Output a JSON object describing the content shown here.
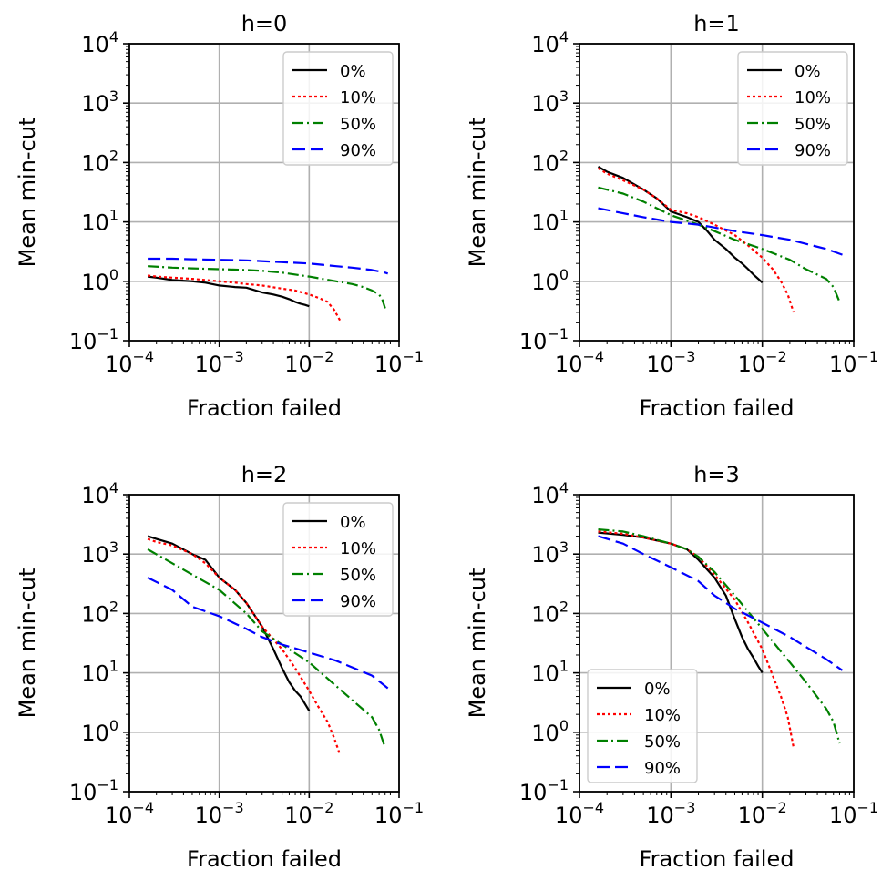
{
  "chart_data": [
    {
      "type": "line",
      "title": "h=0",
      "xlabel": "Fraction failed",
      "ylabel": "Mean min-cut",
      "xscale": "log",
      "yscale": "log",
      "xlim": [
        0.0001,
        0.1
      ],
      "ylim": [
        0.1,
        10000
      ],
      "grid": true,
      "legend_loc": "upper right",
      "series": [
        {
          "name": "0%",
          "color": "#000000",
          "style": "solid",
          "x": [
            0.00016,
            0.0002,
            0.0003,
            0.0005,
            0.0007,
            0.001,
            0.0015,
            0.002,
            0.003,
            0.004,
            0.005,
            0.006,
            0.007,
            0.008,
            0.009,
            0.01
          ],
          "y": [
            1.2,
            1.15,
            1.05,
            1.0,
            0.95,
            0.85,
            0.8,
            0.78,
            0.65,
            0.6,
            0.55,
            0.5,
            0.45,
            0.42,
            0.4,
            0.38
          ]
        },
        {
          "name": "10%",
          "color": "#ff0000",
          "style": "dotted",
          "x": [
            0.00016,
            0.0002,
            0.0003,
            0.0005,
            0.0007,
            0.001,
            0.0015,
            0.002,
            0.003,
            0.005,
            0.007,
            0.01,
            0.013,
            0.016,
            0.019,
            0.022
          ],
          "y": [
            1.25,
            1.2,
            1.15,
            1.1,
            1.05,
            1.0,
            0.95,
            0.9,
            0.85,
            0.75,
            0.7,
            0.6,
            0.52,
            0.45,
            0.33,
            0.22
          ]
        },
        {
          "name": "50%",
          "color": "#008000",
          "style": "dashdot",
          "x": [
            0.00016,
            0.0003,
            0.0005,
            0.001,
            0.002,
            0.003,
            0.005,
            0.01,
            0.02,
            0.03,
            0.04,
            0.05,
            0.06,
            0.065,
            0.07
          ],
          "y": [
            1.8,
            1.7,
            1.65,
            1.6,
            1.55,
            1.5,
            1.4,
            1.2,
            1.0,
            0.9,
            0.8,
            0.7,
            0.6,
            0.5,
            0.35
          ]
        },
        {
          "name": "90%",
          "color": "#0000ff",
          "style": "dashed",
          "x": [
            0.00016,
            0.0003,
            0.0005,
            0.001,
            0.002,
            0.005,
            0.01,
            0.02,
            0.03,
            0.05,
            0.07,
            0.075
          ],
          "y": [
            2.4,
            2.4,
            2.35,
            2.3,
            2.25,
            2.1,
            2.0,
            1.8,
            1.7,
            1.55,
            1.4,
            1.35
          ]
        }
      ]
    },
    {
      "type": "line",
      "title": "h=1",
      "xlabel": "Fraction failed",
      "ylabel": "Mean min-cut",
      "xscale": "log",
      "yscale": "log",
      "xlim": [
        0.0001,
        0.1
      ],
      "ylim": [
        0.1,
        10000
      ],
      "grid": true,
      "legend_loc": "upper right",
      "series": [
        {
          "name": "0%",
          "color": "#000000",
          "style": "solid",
          "x": [
            0.00016,
            0.0002,
            0.0003,
            0.0005,
            0.0007,
            0.001,
            0.0015,
            0.002,
            0.0025,
            0.003,
            0.004,
            0.005,
            0.006,
            0.007,
            0.008,
            0.009,
            0.01
          ],
          "y": [
            85,
            70,
            55,
            35,
            25,
            15,
            12,
            10,
            7,
            5,
            3.5,
            2.5,
            2.0,
            1.6,
            1.3,
            1.1,
            0.95
          ]
        },
        {
          "name": "10%",
          "color": "#ff0000",
          "style": "dotted",
          "x": [
            0.00016,
            0.0002,
            0.0003,
            0.0005,
            0.0007,
            0.001,
            0.0015,
            0.002,
            0.003,
            0.005,
            0.007,
            0.01,
            0.013,
            0.016,
            0.019,
            0.022
          ],
          "y": [
            80,
            65,
            50,
            35,
            25,
            16,
            14,
            12,
            9,
            6,
            4,
            2.5,
            1.6,
            1.0,
            0.6,
            0.3
          ]
        },
        {
          "name": "50%",
          "color": "#008000",
          "style": "dashdot",
          "x": [
            0.00016,
            0.0003,
            0.0005,
            0.001,
            0.002,
            0.003,
            0.005,
            0.01,
            0.02,
            0.03,
            0.05,
            0.06,
            0.07
          ],
          "y": [
            38,
            30,
            22,
            13,
            9,
            7,
            5,
            3.5,
            2.3,
            1.6,
            1.1,
            0.8,
            0.45
          ]
        },
        {
          "name": "90%",
          "color": "#0000ff",
          "style": "dashed",
          "x": [
            0.00016,
            0.0003,
            0.0005,
            0.001,
            0.002,
            0.005,
            0.01,
            0.02,
            0.05,
            0.075
          ],
          "y": [
            17,
            14,
            12,
            10,
            9,
            7,
            6,
            5,
            3.5,
            2.8
          ]
        }
      ]
    },
    {
      "type": "line",
      "title": "h=2",
      "xlabel": "Fraction failed",
      "ylabel": "Mean min-cut",
      "xscale": "log",
      "yscale": "log",
      "xlim": [
        0.0001,
        0.1
      ],
      "ylim": [
        0.1,
        10000
      ],
      "grid": true,
      "legend_loc": "upper right",
      "series": [
        {
          "name": "0%",
          "color": "#000000",
          "style": "solid",
          "x": [
            0.00016,
            0.0002,
            0.0003,
            0.0005,
            0.0007,
            0.001,
            0.0015,
            0.002,
            0.003,
            0.004,
            0.005,
            0.006,
            0.007,
            0.008,
            0.009,
            0.01
          ],
          "y": [
            2000,
            1800,
            1500,
            1000,
            800,
            400,
            250,
            150,
            60,
            25,
            12,
            7,
            5,
            4,
            3,
            2.3
          ]
        },
        {
          "name": "10%",
          "color": "#ff0000",
          "style": "dotted",
          "x": [
            0.00016,
            0.0002,
            0.0003,
            0.0005,
            0.0007,
            0.001,
            0.0015,
            0.002,
            0.003,
            0.005,
            0.007,
            0.01,
            0.013,
            0.016,
            0.019,
            0.022
          ],
          "y": [
            1800,
            1600,
            1400,
            1000,
            700,
            400,
            250,
            150,
            60,
            25,
            12,
            5,
            2.5,
            1.5,
            0.8,
            0.42
          ]
        },
        {
          "name": "50%",
          "color": "#008000",
          "style": "dashdot",
          "x": [
            0.00016,
            0.0003,
            0.0005,
            0.001,
            0.002,
            0.003,
            0.005,
            0.01,
            0.02,
            0.03,
            0.05,
            0.06,
            0.07
          ],
          "y": [
            1200,
            700,
            450,
            250,
            100,
            50,
            30,
            15,
            6,
            3.5,
            1.8,
            1.1,
            0.55
          ]
        },
        {
          "name": "90%",
          "color": "#0000ff",
          "style": "dashed",
          "x": [
            0.00016,
            0.0003,
            0.0005,
            0.001,
            0.002,
            0.003,
            0.005,
            0.01,
            0.02,
            0.05,
            0.075
          ],
          "y": [
            400,
            250,
            130,
            90,
            55,
            40,
            30,
            22,
            16,
            9,
            5.5
          ]
        }
      ]
    },
    {
      "type": "line",
      "title": "h=3",
      "xlabel": "Fraction failed",
      "ylabel": "Mean min-cut",
      "xscale": "log",
      "yscale": "log",
      "xlim": [
        0.0001,
        0.1
      ],
      "ylim": [
        0.1,
        10000
      ],
      "grid": true,
      "legend_loc": "lower left",
      "series": [
        {
          "name": "0%",
          "color": "#000000",
          "style": "solid",
          "x": [
            0.00016,
            0.0003,
            0.0005,
            0.001,
            0.0015,
            0.002,
            0.003,
            0.004,
            0.005,
            0.006,
            0.007,
            0.008,
            0.009,
            0.01
          ],
          "y": [
            2300,
            2100,
            1900,
            1500,
            1200,
            800,
            400,
            200,
            80,
            40,
            25,
            18,
            13,
            10
          ]
        },
        {
          "name": "10%",
          "color": "#ff0000",
          "style": "dotted",
          "x": [
            0.00016,
            0.0003,
            0.0005,
            0.001,
            0.0015,
            0.002,
            0.003,
            0.005,
            0.007,
            0.01,
            0.013,
            0.016,
            0.019,
            0.022
          ],
          "y": [
            2400,
            2200,
            1900,
            1500,
            1200,
            900,
            450,
            170,
            70,
            25,
            9,
            4,
            1.8,
            0.55
          ]
        },
        {
          "name": "50%",
          "color": "#008000",
          "style": "dashdot",
          "x": [
            0.00016,
            0.0003,
            0.0005,
            0.001,
            0.0015,
            0.002,
            0.003,
            0.005,
            0.01,
            0.02,
            0.03,
            0.05,
            0.06,
            0.07
          ],
          "y": [
            2600,
            2400,
            2000,
            1500,
            1200,
            900,
            500,
            200,
            55,
            15,
            7,
            2.5,
            1.5,
            0.65
          ]
        },
        {
          "name": "90%",
          "color": "#0000ff",
          "style": "dashed",
          "x": [
            0.00016,
            0.0003,
            0.0005,
            0.001,
            0.002,
            0.003,
            0.005,
            0.01,
            0.02,
            0.05,
            0.075
          ],
          "y": [
            2000,
            1500,
            1000,
            600,
            350,
            200,
            120,
            70,
            40,
            17,
            11
          ]
        }
      ]
    }
  ]
}
